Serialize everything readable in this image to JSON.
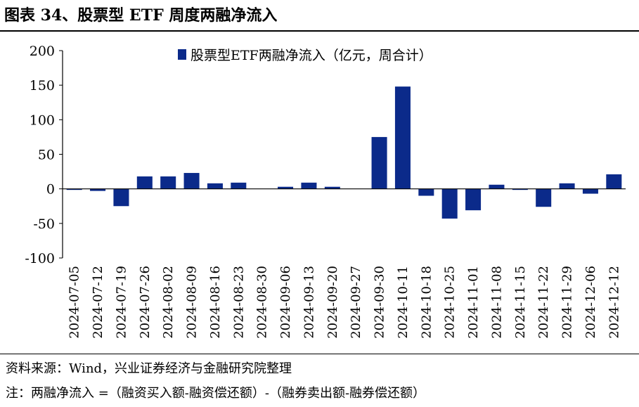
{
  "figure": {
    "title": "图表 34、股票型 ETF 周度两融净流入",
    "source": "资料来源：Wind，兴业证券经济与金融研究院整理",
    "note": "注：两融净流入 =（融资买入额-融资偿还额）-（融券卖出额-融券偿还额）"
  },
  "chart_data": {
    "type": "bar",
    "categories": [
      "2024-07-05",
      "2024-07-12",
      "2024-07-19",
      "2024-07-26",
      "2024-08-02",
      "2024-08-09",
      "2024-08-16",
      "2024-08-23",
      "2024-08-30",
      "2024-09-06",
      "2024-09-13",
      "2024-09-20",
      "2024-09-27",
      "2024-09-30",
      "2024-10-11",
      "2024-10-18",
      "2024-10-25",
      "2024-11-01",
      "2024-11-08",
      "2024-11-15",
      "2024-11-22",
      "2024-11-29",
      "2024-12-06",
      "2024-12-12"
    ],
    "series": [
      {
        "name": "股票型ETF两融净流入（亿元，周合计）",
        "values": [
          -1,
          -3,
          -25,
          18,
          18,
          23,
          8,
          9,
          0,
          3,
          9,
          3,
          0,
          75,
          148,
          -10,
          -43,
          -31,
          6,
          -1,
          -26,
          8,
          -7,
          21
        ],
        "color": "#0b2a8a"
      }
    ],
    "ylim": [
      -100,
      200
    ],
    "yticks": [
      200,
      150,
      100,
      50,
      0,
      -50,
      -100
    ],
    "legend_position": "top-center",
    "grid": false
  }
}
